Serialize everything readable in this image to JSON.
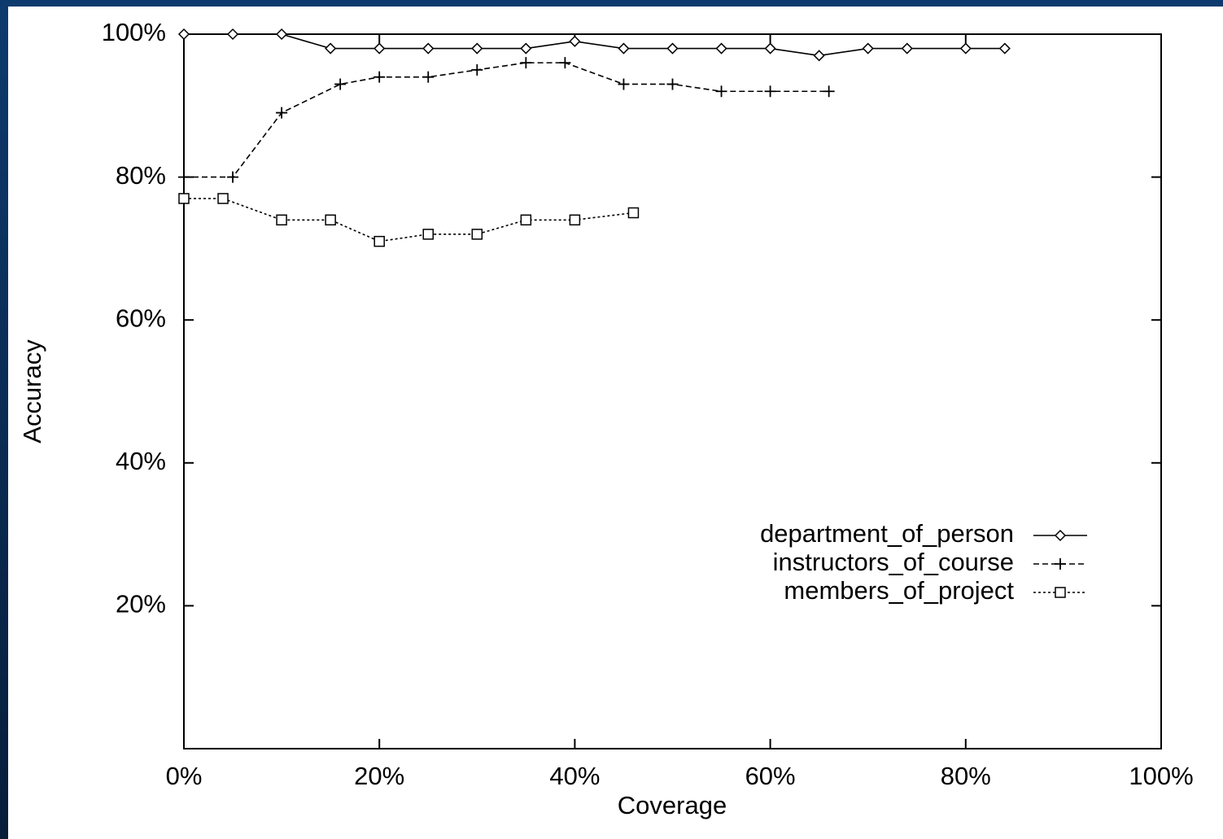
{
  "chart_data": {
    "type": "line",
    "x_label": "Coverage",
    "y_label": "Accuracy",
    "xlim": [
      0,
      100
    ],
    "ylim": [
      0,
      100
    ],
    "xticks": [
      {
        "value": 0,
        "label": "0%"
      },
      {
        "value": 20,
        "label": "20%"
      },
      {
        "value": 40,
        "label": "40%"
      },
      {
        "value": 60,
        "label": "60%"
      },
      {
        "value": 80,
        "label": "80%"
      },
      {
        "value": 100,
        "label": "100%"
      }
    ],
    "yticks": [
      {
        "value": 20,
        "label": "20%"
      },
      {
        "value": 40,
        "label": "40%"
      },
      {
        "value": 60,
        "label": "60%"
      },
      {
        "value": 80,
        "label": "80%"
      },
      {
        "value": 100,
        "label": "100%"
      }
    ],
    "grid": false,
    "legend": "lower right",
    "series": [
      {
        "name": "department_of_person",
        "color": "#000000",
        "dash": "none",
        "marker": "diamond",
        "x": [
          0,
          5,
          10,
          15,
          20,
          25,
          30,
          35,
          40,
          45,
          50,
          55,
          60,
          65,
          70,
          74,
          80,
          84
        ],
        "values": [
          100,
          100,
          100,
          98,
          98,
          98,
          98,
          98,
          99,
          98,
          98,
          98,
          98,
          97,
          98,
          98,
          98,
          98
        ]
      },
      {
        "name": "instructors_of_course",
        "color": "#000000",
        "dash": "7,4",
        "marker": "plus",
        "x": [
          0,
          5,
          10,
          16,
          20,
          25,
          30,
          35,
          39,
          45,
          50,
          55,
          60,
          66
        ],
        "values": [
          80,
          80,
          89,
          93,
          94,
          94,
          95,
          96,
          96,
          93,
          93,
          92,
          92,
          92
        ]
      },
      {
        "name": "members_of_project",
        "color": "#000000",
        "dash": "3,3",
        "marker": "square",
        "x": [
          0,
          4,
          10,
          15,
          20,
          25,
          30,
          35,
          40,
          46
        ],
        "values": [
          77,
          77,
          74,
          74,
          71,
          72,
          72,
          74,
          74,
          75
        ]
      }
    ]
  }
}
